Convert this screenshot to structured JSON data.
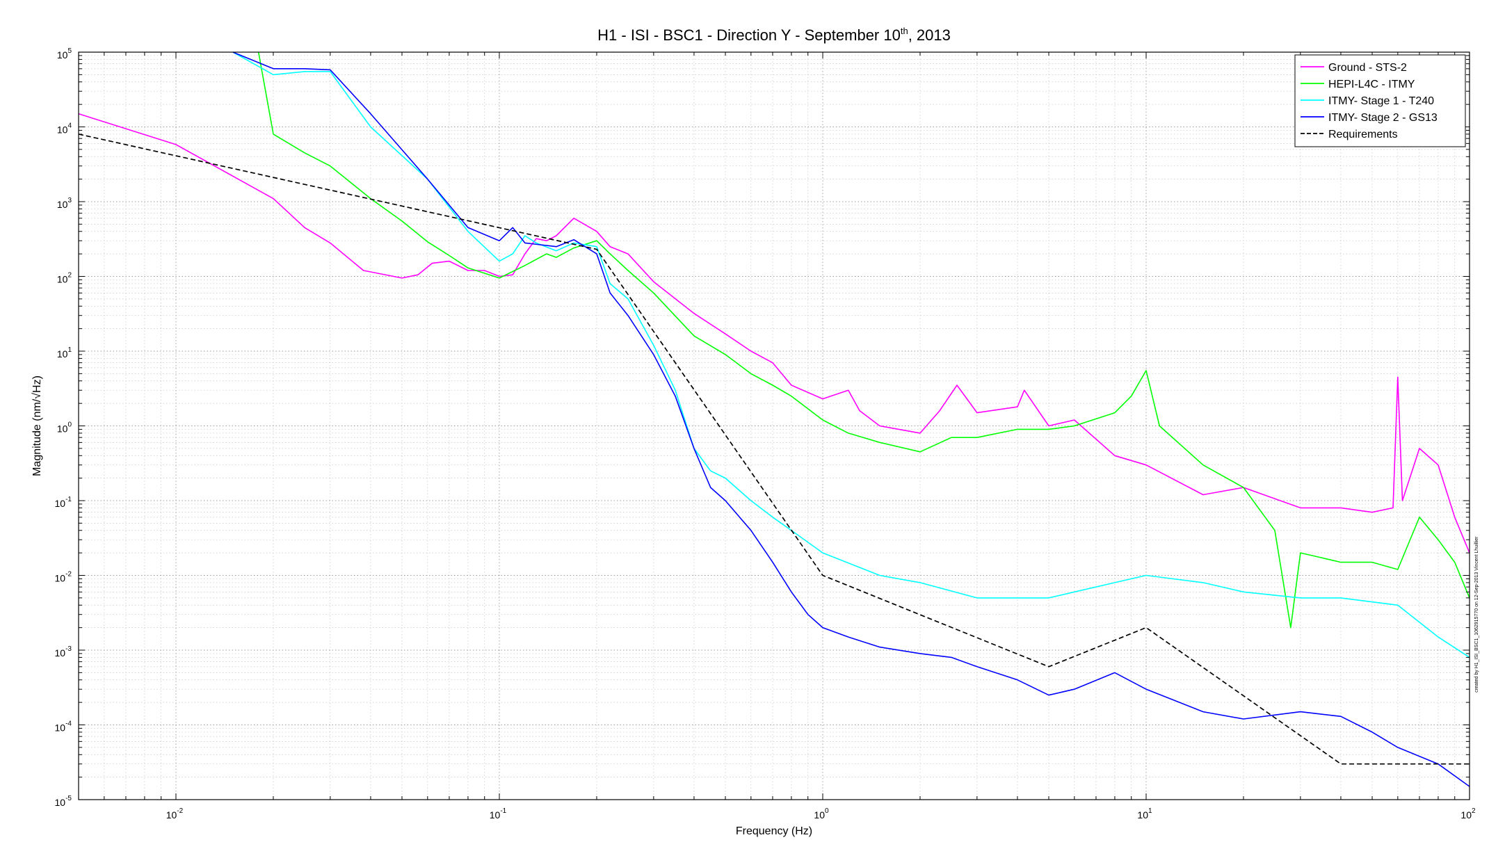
{
  "chart_data": {
    "type": "line",
    "title": "H1 - ISI - BSC1 - Direction Y - September 10",
    "title_superscript": "th",
    "title_suffix": ", 2013",
    "xlabel": "Frequency (Hz)",
    "ylabel": "Magnitude (nm/√Hz)",
    "x_scale": "log",
    "y_scale": "log",
    "xlim": [
      0.005,
      100
    ],
    "ylim": [
      1e-05,
      100000
    ],
    "grid": true,
    "minor_grid": true,
    "legend_position": "top-right",
    "x_tick_labels": [
      {
        "base": "10",
        "exp": "-2"
      },
      {
        "base": "10",
        "exp": "-1"
      },
      {
        "base": "10",
        "exp": "0"
      },
      {
        "base": "10",
        "exp": "1"
      },
      {
        "base": "10",
        "exp": "2"
      }
    ],
    "y_tick_labels": [
      {
        "base": "10",
        "exp": "-5"
      },
      {
        "base": "10",
        "exp": "-4"
      },
      {
        "base": "10",
        "exp": "-3"
      },
      {
        "base": "10",
        "exp": "-2"
      },
      {
        "base": "10",
        "exp": "-1"
      },
      {
        "base": "10",
        "exp": "0"
      },
      {
        "base": "10",
        "exp": "1"
      },
      {
        "base": "10",
        "exp": "2"
      },
      {
        "base": "10",
        "exp": "3"
      },
      {
        "base": "10",
        "exp": "4"
      },
      {
        "base": "10",
        "exp": "5"
      }
    ],
    "series": [
      {
        "name": "Ground - STS-2",
        "color": "#ff00ff",
        "dash": "solid",
        "points": [
          [
            0.005,
            15000
          ],
          [
            0.01,
            5800
          ],
          [
            0.02,
            1100
          ],
          [
            0.025,
            450
          ],
          [
            0.03,
            280
          ],
          [
            0.038,
            120
          ],
          [
            0.05,
            95
          ],
          [
            0.056,
            105
          ],
          [
            0.062,
            150
          ],
          [
            0.07,
            160
          ],
          [
            0.08,
            120
          ],
          [
            0.09,
            120
          ],
          [
            0.1,
            100
          ],
          [
            0.11,
            105
          ],
          [
            0.12,
            200
          ],
          [
            0.13,
            320
          ],
          [
            0.14,
            300
          ],
          [
            0.15,
            350
          ],
          [
            0.17,
            600
          ],
          [
            0.2,
            400
          ],
          [
            0.22,
            250
          ],
          [
            0.25,
            200
          ],
          [
            0.3,
            85
          ],
          [
            0.4,
            32
          ],
          [
            0.5,
            17
          ],
          [
            0.6,
            10
          ],
          [
            0.7,
            7
          ],
          [
            0.8,
            3.5
          ],
          [
            1.0,
            2.3
          ],
          [
            1.2,
            3.0
          ],
          [
            1.3,
            1.6
          ],
          [
            1.5,
            1.0
          ],
          [
            2.0,
            0.8
          ],
          [
            2.3,
            1.6
          ],
          [
            2.6,
            3.5
          ],
          [
            3.0,
            1.5
          ],
          [
            4.0,
            1.8
          ],
          [
            4.2,
            3.0
          ],
          [
            5.0,
            1.0
          ],
          [
            6.0,
            1.2
          ],
          [
            8.0,
            0.4
          ],
          [
            10.0,
            0.3
          ],
          [
            15.0,
            0.12
          ],
          [
            20.0,
            0.15
          ],
          [
            30.0,
            0.08
          ],
          [
            40.0,
            0.08
          ],
          [
            50.0,
            0.07
          ],
          [
            58.0,
            0.08
          ],
          [
            60.0,
            4.5
          ],
          [
            62.0,
            0.1
          ],
          [
            70.0,
            0.5
          ],
          [
            80.0,
            0.3
          ],
          [
            90.0,
            0.06
          ],
          [
            100.0,
            0.02
          ]
        ]
      },
      {
        "name": "HEPI-L4C - ITMY",
        "color": "#00ff00",
        "dash": "solid",
        "points": [
          [
            0.018,
            100000
          ],
          [
            0.02,
            8000
          ],
          [
            0.025,
            4500
          ],
          [
            0.03,
            3000
          ],
          [
            0.04,
            1100
          ],
          [
            0.05,
            550
          ],
          [
            0.06,
            290
          ],
          [
            0.07,
            190
          ],
          [
            0.08,
            130
          ],
          [
            0.1,
            95
          ],
          [
            0.12,
            140
          ],
          [
            0.14,
            200
          ],
          [
            0.15,
            180
          ],
          [
            0.17,
            240
          ],
          [
            0.2,
            300
          ],
          [
            0.22,
            200
          ],
          [
            0.25,
            120
          ],
          [
            0.3,
            60
          ],
          [
            0.4,
            16
          ],
          [
            0.5,
            9
          ],
          [
            0.6,
            5
          ],
          [
            0.7,
            3.5
          ],
          [
            0.8,
            2.5
          ],
          [
            1.0,
            1.2
          ],
          [
            1.2,
            0.8
          ],
          [
            1.5,
            0.6
          ],
          [
            2.0,
            0.45
          ],
          [
            2.5,
            0.7
          ],
          [
            3.0,
            0.7
          ],
          [
            4.0,
            0.9
          ],
          [
            5.0,
            0.9
          ],
          [
            6.0,
            1.0
          ],
          [
            8.0,
            1.5
          ],
          [
            9.0,
            2.5
          ],
          [
            10.0,
            5.5
          ],
          [
            11.0,
            1.0
          ],
          [
            15.0,
            0.3
          ],
          [
            20.0,
            0.15
          ],
          [
            25.0,
            0.04
          ],
          [
            28.0,
            0.002
          ],
          [
            30.0,
            0.02
          ],
          [
            40.0,
            0.015
          ],
          [
            50.0,
            0.015
          ],
          [
            60.0,
            0.012
          ],
          [
            70.0,
            0.06
          ],
          [
            80.0,
            0.03
          ],
          [
            90.0,
            0.015
          ],
          [
            100.0,
            0.005
          ]
        ]
      },
      {
        "name": "ITMY- Stage 1 - T240",
        "color": "#00ffff",
        "dash": "solid",
        "points": [
          [
            0.015,
            100000
          ],
          [
            0.02,
            50000
          ],
          [
            0.025,
            55000
          ],
          [
            0.03,
            55000
          ],
          [
            0.04,
            10000
          ],
          [
            0.06,
            2000
          ],
          [
            0.08,
            400
          ],
          [
            0.1,
            160
          ],
          [
            0.11,
            200
          ],
          [
            0.12,
            350
          ],
          [
            0.13,
            280
          ],
          [
            0.15,
            220
          ],
          [
            0.17,
            280
          ],
          [
            0.2,
            250
          ],
          [
            0.22,
            80
          ],
          [
            0.25,
            50
          ],
          [
            0.3,
            12
          ],
          [
            0.35,
            3
          ],
          [
            0.4,
            0.5
          ],
          [
            0.45,
            0.25
          ],
          [
            0.5,
            0.2
          ],
          [
            0.6,
            0.1
          ],
          [
            0.7,
            0.06
          ],
          [
            0.8,
            0.04
          ],
          [
            1.0,
            0.02
          ],
          [
            1.5,
            0.01
          ],
          [
            2.0,
            0.008
          ],
          [
            3.0,
            0.005
          ],
          [
            4.0,
            0.005
          ],
          [
            5.0,
            0.005
          ],
          [
            6.0,
            0.006
          ],
          [
            8.0,
            0.008
          ],
          [
            10.0,
            0.01
          ],
          [
            15.0,
            0.008
          ],
          [
            20.0,
            0.006
          ],
          [
            30.0,
            0.005
          ],
          [
            40.0,
            0.005
          ],
          [
            60.0,
            0.004
          ],
          [
            80.0,
            0.0015
          ],
          [
            100.0,
            0.0008
          ]
        ]
      },
      {
        "name": "ITMY- Stage 2 - GS13",
        "color": "#0000ff",
        "dash": "solid",
        "points": [
          [
            0.015,
            100000
          ],
          [
            0.02,
            60000
          ],
          [
            0.025,
            60000
          ],
          [
            0.03,
            58000
          ],
          [
            0.04,
            15000
          ],
          [
            0.06,
            2000
          ],
          [
            0.08,
            450
          ],
          [
            0.1,
            300
          ],
          [
            0.11,
            450
          ],
          [
            0.12,
            280
          ],
          [
            0.15,
            250
          ],
          [
            0.17,
            310
          ],
          [
            0.2,
            200
          ],
          [
            0.22,
            60
          ],
          [
            0.25,
            30
          ],
          [
            0.3,
            9
          ],
          [
            0.35,
            2.5
          ],
          [
            0.4,
            0.5
          ],
          [
            0.45,
            0.15
          ],
          [
            0.5,
            0.1
          ],
          [
            0.6,
            0.04
          ],
          [
            0.7,
            0.015
          ],
          [
            0.8,
            0.006
          ],
          [
            0.9,
            0.003
          ],
          [
            1.0,
            0.002
          ],
          [
            1.2,
            0.0015
          ],
          [
            1.5,
            0.0011
          ],
          [
            2.0,
            0.0009
          ],
          [
            2.5,
            0.0008
          ],
          [
            3.0,
            0.0006
          ],
          [
            4.0,
            0.0004
          ],
          [
            5.0,
            0.00025
          ],
          [
            6.0,
            0.0003
          ],
          [
            8.0,
            0.0005
          ],
          [
            10.0,
            0.0003
          ],
          [
            15.0,
            0.00015
          ],
          [
            20.0,
            0.00012
          ],
          [
            30.0,
            0.00015
          ],
          [
            40.0,
            0.00013
          ],
          [
            50.0,
            8e-05
          ],
          [
            60.0,
            5e-05
          ],
          [
            80.0,
            3e-05
          ],
          [
            100.0,
            1.5e-05
          ]
        ]
      },
      {
        "name": "Requirements",
        "color": "#000000",
        "dash": "dashed",
        "points": [
          [
            0.005,
            8000
          ],
          [
            0.2,
            230
          ],
          [
            1.0,
            0.01
          ],
          [
            5.0,
            0.0006
          ],
          [
            10.0,
            0.002
          ],
          [
            40.0,
            3e-05
          ],
          [
            100.0,
            3e-05
          ]
        ]
      }
    ],
    "credit_text": "created by H1_ISI_BSC1_1062915770 on 12-Sep-2013 Vincent Lhuillier"
  }
}
